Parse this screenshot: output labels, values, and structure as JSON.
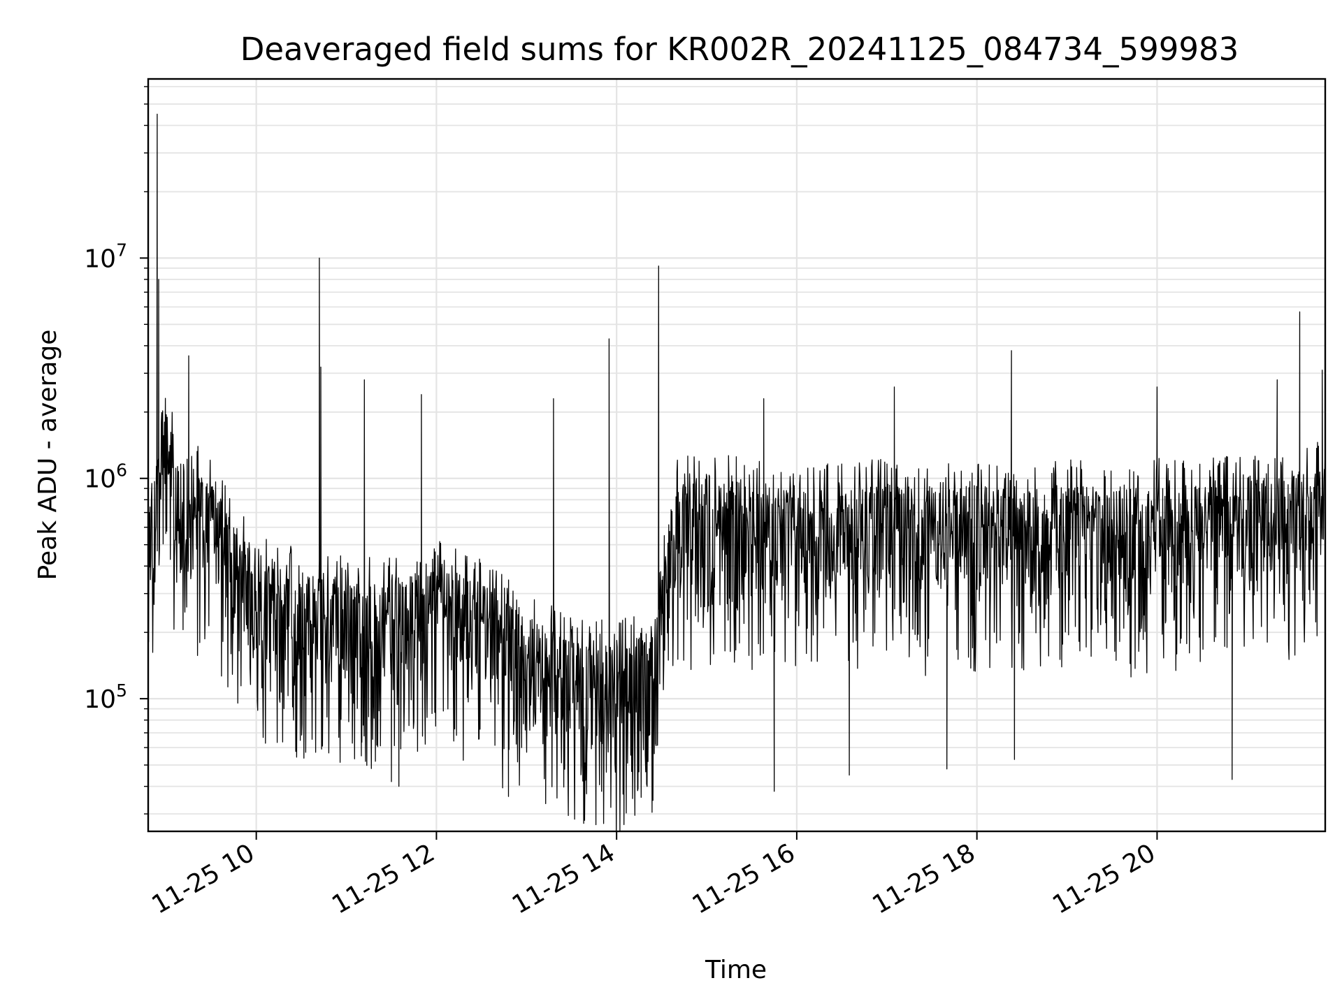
{
  "chart_data": {
    "type": "line",
    "title": "Deaveraged field sums for KR002R_20241125_084734_599983",
    "xlabel": "Time",
    "ylabel": "Peak ADU - average",
    "x_tick_labels": [
      "11-25 10",
      "11-25 12",
      "11-25 14",
      "11-25 16",
      "11-25 18",
      "11-25 20"
    ],
    "x_range": [
      "2024-11-25 08:48",
      "2024-11-25 21:52"
    ],
    "y_scale": "log",
    "y_range": [
      25000,
      65000000
    ],
    "y_tick_labels": [
      {
        "base": "10",
        "exp": "5"
      },
      {
        "base": "10",
        "exp": "6"
      },
      {
        "base": "10",
        "exp": "7"
      }
    ],
    "grid": true,
    "line_color": "#000000",
    "series": [
      {
        "x": [
          "2024-11-25 08:48",
          "2024-11-25 08:55",
          "2024-11-25 09:00",
          "2024-11-25 09:10",
          "2024-11-25 09:20",
          "2024-11-25 09:30",
          "2024-11-25 09:45",
          "2024-11-25 10:00",
          "2024-11-25 10:20",
          "2024-11-25 10:40",
          "2024-11-25 11:00",
          "2024-11-25 11:30",
          "2024-11-25 12:00",
          "2024-11-25 12:30",
          "2024-11-25 13:00",
          "2024-11-25 13:30",
          "2024-11-25 14:00",
          "2024-11-25 14:25",
          "2024-11-25 14:40",
          "2024-11-25 15:00",
          "2024-11-25 15:30",
          "2024-11-25 16:00",
          "2024-11-25 16:30",
          "2024-11-25 17:00",
          "2024-11-25 17:30",
          "2024-11-25 18:00",
          "2024-11-25 18:30",
          "2024-11-25 19:00",
          "2024-11-25 19:30",
          "2024-11-25 20:00",
          "2024-11-25 20:30",
          "2024-11-25 21:00",
          "2024-11-25 21:30",
          "2024-11-25 21:52"
        ],
        "values": [
          650000,
          900000,
          1400000,
          700000,
          750000,
          650000,
          450000,
          300000,
          260000,
          270000,
          240000,
          230000,
          280000,
          230000,
          160000,
          130000,
          120000,
          150000,
          650000,
          700000,
          650000,
          600000,
          620000,
          650000,
          600000,
          650000,
          620000,
          650000,
          600000,
          650000,
          650000,
          680000,
          700000,
          800000
        ]
      }
    ],
    "spikes": [
      {
        "x": "2024-11-25 08:54",
        "value": 45000000
      },
      {
        "x": "2024-11-25 08:55",
        "value": 8000000
      },
      {
        "x": "2024-11-25 09:15",
        "value": 3600000
      },
      {
        "x": "2024-11-25 10:42",
        "value": 10000000
      },
      {
        "x": "2024-11-25 10:43",
        "value": 3200000
      },
      {
        "x": "2024-11-25 11:12",
        "value": 2800000
      },
      {
        "x": "2024-11-25 11:50",
        "value": 2400000
      },
      {
        "x": "2024-11-25 13:18",
        "value": 2300000
      },
      {
        "x": "2024-11-25 13:55",
        "value": 4300000
      },
      {
        "x": "2024-11-25 14:28",
        "value": 9200000
      },
      {
        "x": "2024-11-25 15:38",
        "value": 2300000
      },
      {
        "x": "2024-11-25 17:05",
        "value": 2600000
      },
      {
        "x": "2024-11-25 18:23",
        "value": 3800000
      },
      {
        "x": "2024-11-25 20:00",
        "value": 2600000
      },
      {
        "x": "2024-11-25 21:20",
        "value": 2800000
      },
      {
        "x": "2024-11-25 21:35",
        "value": 5700000
      },
      {
        "x": "2024-11-25 21:50",
        "value": 3100000
      }
    ],
    "dips": [
      {
        "x": "2024-11-25 11:10",
        "value": 55000
      },
      {
        "x": "2024-11-25 11:30",
        "value": 42000
      },
      {
        "x": "2024-11-25 11:35",
        "value": 40000
      },
      {
        "x": "2024-11-25 12:48",
        "value": 36000
      },
      {
        "x": "2024-11-25 13:40",
        "value": 37000
      },
      {
        "x": "2024-11-25 13:50",
        "value": 38000
      },
      {
        "x": "2024-11-25 14:20",
        "value": 41000
      },
      {
        "x": "2024-11-25 15:45",
        "value": 38000
      },
      {
        "x": "2024-11-25 16:35",
        "value": 45000
      },
      {
        "x": "2024-11-25 17:40",
        "value": 48000
      },
      {
        "x": "2024-11-25 18:25",
        "value": 53000
      },
      {
        "x": "2024-11-25 20:50",
        "value": 43000
      }
    ]
  }
}
